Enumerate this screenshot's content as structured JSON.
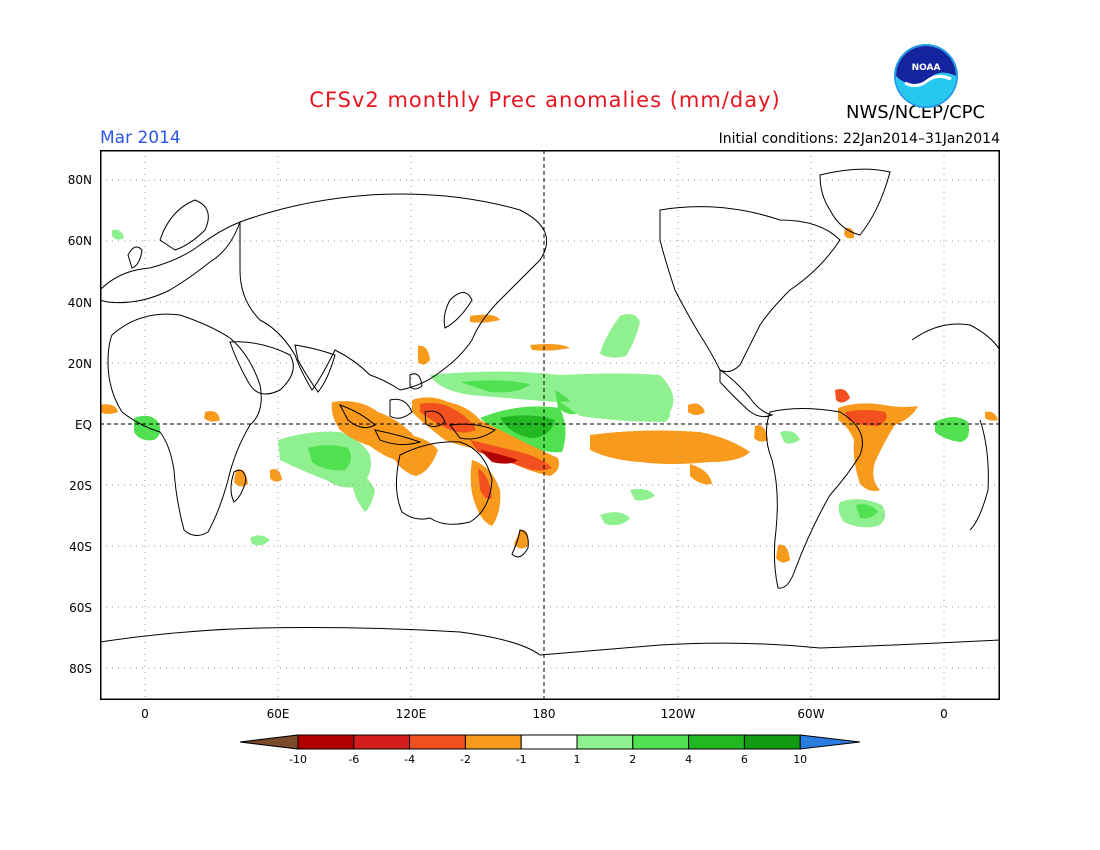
{
  "header": {
    "title": "CFSv2 monthly Prec anomalies (mm/day)",
    "agency": "NWS/NCEP/CPC",
    "month": "Mar 2014",
    "initial_conditions": "Initial conditions: 22Jan2014–31Jan2014",
    "logo_text": "NOAA"
  },
  "axes": {
    "lat_labels": [
      "80N",
      "60N",
      "40N",
      "20N",
      "EQ",
      "20S",
      "40S",
      "60S",
      "80S"
    ],
    "lon_labels": [
      "0",
      "60E",
      "120E",
      "180",
      "120W",
      "60W",
      "0"
    ]
  },
  "colorbar": {
    "labels": [
      "-10",
      "-6",
      "-4",
      "-2",
      "-1",
      "1",
      "2",
      "4",
      "6",
      "10"
    ],
    "colors": [
      "#7b4a2a",
      "#b00000",
      "#d41e1e",
      "#f2501e",
      "#f89a1c",
      "#ffffff",
      "#8ef08e",
      "#50e050",
      "#22b822",
      "#129a12",
      "#2b7de0"
    ]
  },
  "colors": {
    "title": "#e8141e",
    "month": "#2b56e6"
  }
}
